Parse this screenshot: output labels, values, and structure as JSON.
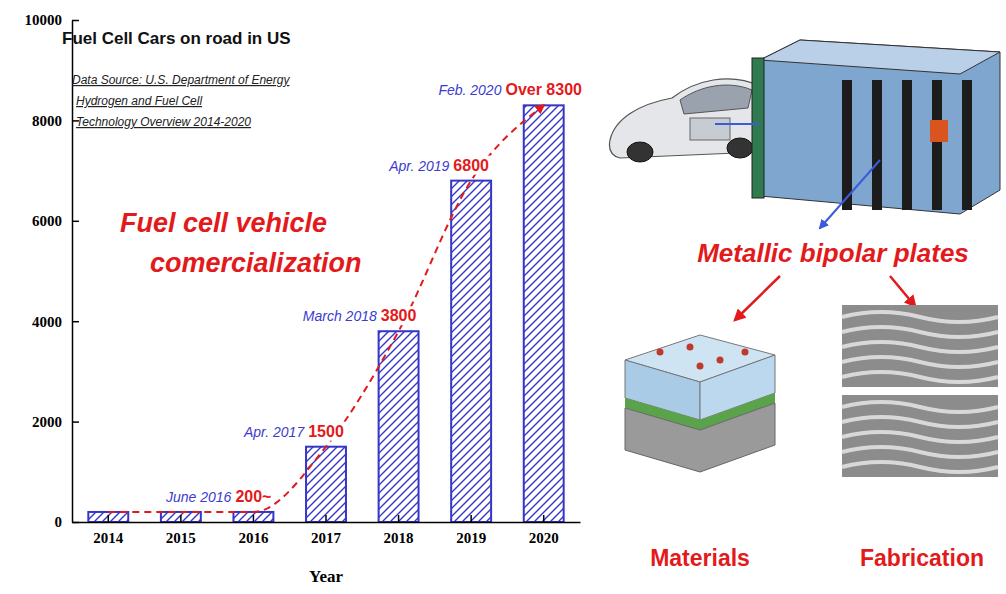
{
  "chart_data": {
    "type": "bar",
    "title": "Fuel Cell Cars on road in US",
    "source": [
      "Data Source: U.S. Department of Energy",
      "Hydrogen and Fuel Cell",
      "Technology Overview 2014-2020"
    ],
    "annotation": [
      "Fuel cell vehicle",
      "comercialization"
    ],
    "x_label": "Year",
    "categories": [
      "2014",
      "2015",
      "2016",
      "2017",
      "2018",
      "2019",
      "2020"
    ],
    "values": [
      200,
      200,
      200,
      1500,
      3800,
      6800,
      8300
    ],
    "value_labels": [
      null,
      null,
      "200~",
      "1500",
      "3800",
      "6800",
      "Over 8300"
    ],
    "date_labels": [
      null,
      null,
      "June 2016",
      "Apr. 2017",
      "March 2018",
      "Apr. 2019",
      "Feb. 2020"
    ],
    "color": "#3535c8",
    "ylim": [
      0,
      10000
    ],
    "yticks": [
      0,
      2000,
      4000,
      6000,
      8000,
      10000
    ],
    "data_labels": true,
    "grid": false
  },
  "diagram": {
    "heading": "Metallic bipolar plates",
    "panels": [
      "Materials",
      "Fabrication"
    ]
  }
}
